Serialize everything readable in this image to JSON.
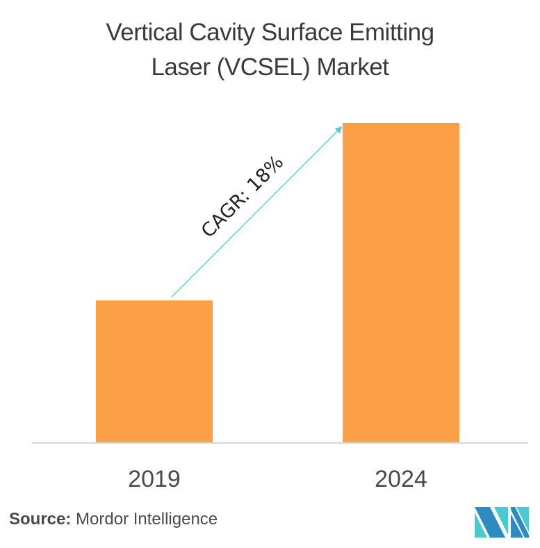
{
  "title_lines": [
    "Vertical Cavity Surface Emitting",
    "Laser (VCSEL) Market"
  ],
  "colors": {
    "bar": "#FBA047",
    "arrow": "#5CC8CC",
    "axis": "#D6D6D6",
    "text": "#3A3A3A",
    "logo_dark": "#2E8BC0",
    "logo_light": "#4CC9CF"
  },
  "chart_data": {
    "type": "bar",
    "title": "Vertical Cavity Surface Emitting Laser (VCSEL) Market",
    "categories": [
      "2019",
      "2024"
    ],
    "values": [
      1.0,
      2.25
    ],
    "value_note": "relative market size (unlabeled; 2019 normalized to 1)",
    "xlabel": "",
    "ylabel": "",
    "ylim": [
      0,
      2.25
    ],
    "grid": false,
    "legend": "none",
    "annotation": {
      "text": "CAGR: 18%",
      "from": "2019",
      "to": "2024"
    }
  },
  "source": {
    "label": "Source:",
    "name": "Mordor Intelligence"
  },
  "logo": {
    "name": "mordor-intelligence-logo"
  }
}
